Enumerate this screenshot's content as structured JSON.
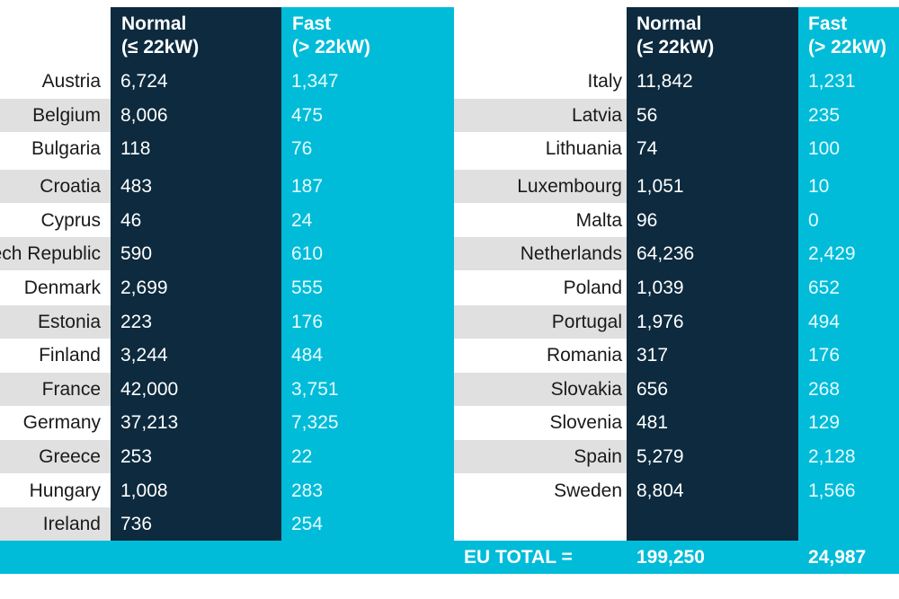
{
  "chart_data": {
    "type": "table",
    "columns": [
      {
        "label_line1": "Normal",
        "label_line2": "(≤ 22kW)"
      },
      {
        "label_line1": "Fast",
        "label_line2": "(> 22kW)"
      }
    ],
    "rows": [
      {
        "country": "Austria",
        "normal": "6,724",
        "fast": "1,347"
      },
      {
        "country": "Belgium",
        "normal": "8,006",
        "fast": "475"
      },
      {
        "country": "Bulgaria",
        "normal": "118",
        "fast": "76"
      },
      {
        "country": "Croatia",
        "normal": "483",
        "fast": "187"
      },
      {
        "country": "Cyprus",
        "normal": "46",
        "fast": "24"
      },
      {
        "country": "ech Republic",
        "normal": "590",
        "fast": "610"
      },
      {
        "country": "Denmark",
        "normal": "2,699",
        "fast": "555"
      },
      {
        "country": "Estonia",
        "normal": "223",
        "fast": "176"
      },
      {
        "country": "Finland",
        "normal": "3,244",
        "fast": "484"
      },
      {
        "country": "France",
        "normal": "42,000",
        "fast": "3,751"
      },
      {
        "country": "Germany",
        "normal": "37,213",
        "fast": "7,325"
      },
      {
        "country": "Greece",
        "normal": "253",
        "fast": "22"
      },
      {
        "country": "Hungary",
        "normal": "1,008",
        "fast": "283"
      },
      {
        "country": "Ireland",
        "normal": "736",
        "fast": "254"
      },
      {
        "country": "Italy",
        "normal": "11,842",
        "fast": "1,231"
      },
      {
        "country": "Latvia",
        "normal": "56",
        "fast": "235"
      },
      {
        "country": "Lithuania",
        "normal": "74",
        "fast": "100"
      },
      {
        "country": "Luxembourg",
        "normal": "1,051",
        "fast": "10"
      },
      {
        "country": "Malta",
        "normal": "96",
        "fast": "0"
      },
      {
        "country": "Netherlands",
        "normal": "64,236",
        "fast": "2,429"
      },
      {
        "country": "Poland",
        "normal": "1,039",
        "fast": "652"
      },
      {
        "country": "Portugal",
        "normal": "1,976",
        "fast": "494"
      },
      {
        "country": "Romania",
        "normal": "317",
        "fast": "176"
      },
      {
        "country": "Slovakia",
        "normal": "656",
        "fast": "268"
      },
      {
        "country": "Slovenia",
        "normal": "481",
        "fast": "129"
      },
      {
        "country": "Spain",
        "normal": "5,279",
        "fast": "2,128"
      },
      {
        "country": "Sweden",
        "normal": "8,804",
        "fast": "1,566"
      }
    ],
    "total": {
      "label": "EU TOTAL  =",
      "normal": "199,250",
      "fast": "24,987"
    }
  },
  "colors": {
    "normal_column": "#0d2a3e",
    "fast_column": "#00bcd8",
    "stripe": "#e0e0e0"
  }
}
